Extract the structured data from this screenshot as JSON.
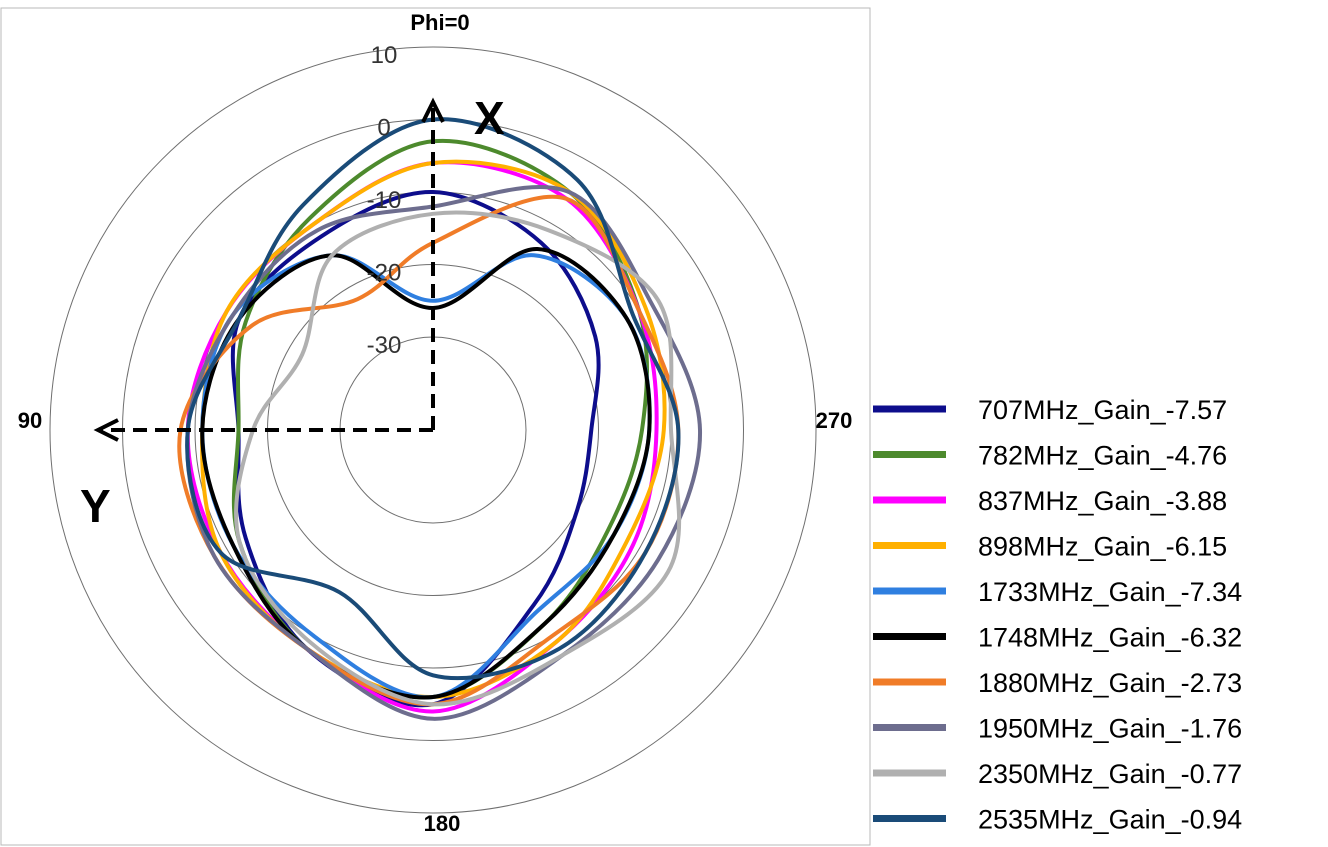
{
  "chart_data": {
    "type": "line",
    "subtype": "polar",
    "r_range": [
      -30,
      10
    ],
    "r_ticks": [
      10,
      0,
      -10,
      -20,
      -30
    ],
    "direction_labels": [
      "Phi=0",
      "90",
      "180",
      "270"
    ],
    "axis_letters": [
      "X",
      "Y"
    ],
    "grid": true,
    "legend_position": "right",
    "theta": [
      0,
      30,
      60,
      90,
      120,
      150,
      180,
      210,
      240,
      270,
      300,
      330
    ],
    "series": [
      {
        "name": "707MHz_Gain_-7.57",
        "color": "#0d0d8c",
        "values": [
          -10,
          -12,
          -12,
          -16,
          -13,
          -8,
          -5,
          -15,
          -20,
          -21,
          -17,
          -13
        ]
      },
      {
        "name": "782MHz_Gain_-4.76",
        "color": "#4d8a2d",
        "values": [
          -3,
          -9,
          -13,
          -16,
          -12,
          -8,
          -6,
          -12,
          -15,
          -14,
          -10,
          -5
        ]
      },
      {
        "name": "837MHz_Gain_-3.88",
        "color": "#ff00ff",
        "values": [
          -6,
          -10,
          -10,
          -9,
          -9,
          -8,
          -4,
          -9,
          -11,
          -12,
          -10,
          -6
        ]
      },
      {
        "name": "898MHz_Gain_-6.15",
        "color": "#ffb000",
        "values": [
          -6,
          -10,
          -10,
          -11,
          -9,
          -8,
          -6,
          -9,
          -12,
          -11,
          -9,
          -5
        ]
      },
      {
        "name": "1733MHz_Gain_-7.34",
        "color": "#2f7fe0",
        "values": [
          -25,
          -15,
          -11,
          -11,
          -11,
          -10,
          -6,
          -14,
          -14,
          -13,
          -12,
          -15
        ]
      },
      {
        "name": "1748MHz_Gain_-6.32",
        "color": "#000000",
        "values": [
          -26,
          -15,
          -12,
          -11,
          -11,
          -8,
          -6,
          -12,
          -14,
          -13,
          -12,
          -14
        ]
      },
      {
        "name": "1880MHz_Gain_-2.73",
        "color": "#f07c28",
        "values": [
          -17,
          -22,
          -14,
          -8,
          -8,
          -8,
          -5,
          -10,
          -9,
          -9,
          -10,
          -6
        ]
      },
      {
        "name": "1950MHz_Gain_-1.76",
        "color": "#6d6d8e",
        "values": [
          -12,
          -11,
          -11,
          -9,
          -8,
          -8,
          -3,
          -7,
          -7,
          -6,
          -8,
          -5
        ]
      },
      {
        "name": "2350MHz_Gain_-0.77",
        "color": "#b0b0b0",
        "values": [
          -13,
          -15,
          -22,
          -18,
          -12,
          -9,
          -5,
          -7,
          -5,
          -10,
          -7,
          -11
        ]
      },
      {
        "name": "2535MHz_Gain_-0.94",
        "color": "#1a4b78",
        "values": [
          0,
          -7,
          -12,
          -9,
          -9,
          -17,
          -9,
          -8,
          -9,
          -9,
          -11,
          -3
        ]
      }
    ]
  }
}
